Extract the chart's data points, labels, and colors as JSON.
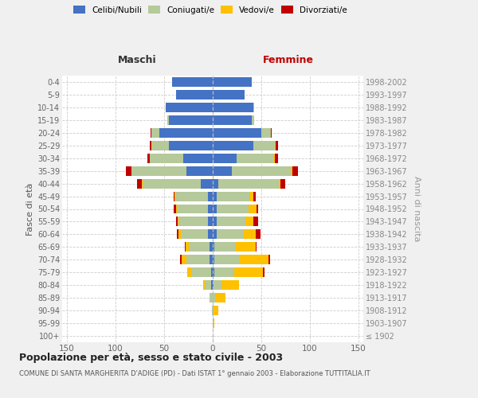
{
  "age_groups": [
    "100+",
    "95-99",
    "90-94",
    "85-89",
    "80-84",
    "75-79",
    "70-74",
    "65-69",
    "60-64",
    "55-59",
    "50-54",
    "45-49",
    "40-44",
    "35-39",
    "30-34",
    "25-29",
    "20-24",
    "15-19",
    "10-14",
    "5-9",
    "0-4"
  ],
  "birth_years": [
    "≤ 1902",
    "1903-1907",
    "1908-1912",
    "1913-1917",
    "1918-1922",
    "1923-1927",
    "1928-1932",
    "1933-1937",
    "1938-1942",
    "1943-1947",
    "1948-1952",
    "1953-1957",
    "1958-1962",
    "1963-1967",
    "1968-1972",
    "1973-1977",
    "1978-1982",
    "1983-1987",
    "1988-1992",
    "1993-1997",
    "1998-2002"
  ],
  "maschi_celibi": [
    0,
    0,
    0,
    0,
    2,
    2,
    3,
    3,
    5,
    5,
    5,
    5,
    12,
    27,
    30,
    45,
    55,
    45,
    48,
    38,
    42
  ],
  "maschi_coniugati": [
    0,
    0,
    1,
    3,
    6,
    20,
    24,
    22,
    28,
    30,
    32,
    33,
    60,
    57,
    35,
    17,
    8,
    2,
    0,
    0,
    0
  ],
  "maschi_vedovi": [
    0,
    0,
    0,
    0,
    2,
    4,
    5,
    3,
    2,
    1,
    1,
    1,
    1,
    0,
    0,
    1,
    0,
    0,
    0,
    0,
    0
  ],
  "maschi_divorziati": [
    0,
    0,
    0,
    0,
    0,
    0,
    2,
    1,
    2,
    2,
    2,
    1,
    5,
    5,
    2,
    2,
    1,
    0,
    0,
    0,
    0
  ],
  "femmine_nubili": [
    0,
    0,
    0,
    0,
    1,
    2,
    2,
    2,
    4,
    4,
    4,
    4,
    6,
    20,
    25,
    42,
    50,
    40,
    42,
    33,
    40
  ],
  "femmine_coniugate": [
    0,
    0,
    1,
    3,
    8,
    20,
    25,
    22,
    28,
    30,
    33,
    34,
    62,
    60,
    38,
    22,
    10,
    3,
    1,
    0,
    0
  ],
  "femmine_vedove": [
    0,
    2,
    5,
    10,
    18,
    30,
    30,
    20,
    12,
    8,
    8,
    4,
    2,
    2,
    1,
    1,
    0,
    0,
    0,
    0,
    0
  ],
  "femmine_divorziate": [
    0,
    0,
    0,
    0,
    0,
    1,
    2,
    1,
    5,
    5,
    2,
    2,
    5,
    6,
    3,
    2,
    1,
    0,
    0,
    0,
    0
  ],
  "color_celibi": "#4472c4",
  "color_coniugati": "#b5c99a",
  "color_vedovi": "#ffc000",
  "color_divorziati": "#c00000",
  "xlim": 155,
  "title": "Popolazione per età, sesso e stato civile - 2003",
  "subtitle": "COMUNE DI SANTA MARGHERITA D'ADIGE (PD) - Dati ISTAT 1° gennaio 2003 - Elaborazione TUTTITALIA.IT",
  "ylabel_left": "Fasce di età",
  "ylabel_right": "Anni di nascita",
  "maschi_label": "Maschi",
  "femmine_label": "Femmine",
  "legend_labels": [
    "Celibi/Nubili",
    "Coniugati/e",
    "Vedovi/e",
    "Divorziati/e"
  ],
  "bg_color": "#f0f0f0",
  "plot_bg_color": "#ffffff",
  "grid_color": "#cccccc"
}
